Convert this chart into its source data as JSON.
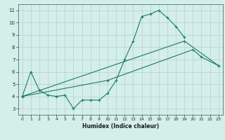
{
  "xlabel": "Humidex (Indice chaleur)",
  "xlim": [
    -0.5,
    23.5
  ],
  "ylim": [
    2.5,
    11.5
  ],
  "xticks": [
    0,
    1,
    2,
    3,
    4,
    5,
    6,
    7,
    8,
    9,
    10,
    11,
    12,
    13,
    14,
    15,
    16,
    17,
    18,
    19,
    20,
    21,
    22,
    23
  ],
  "yticks": [
    3,
    4,
    5,
    6,
    7,
    8,
    9,
    10,
    11
  ],
  "background_color": "#d4eeea",
  "grid_color": "#b8ced8",
  "line_color": "#1a7a6e",
  "line1_x": [
    0,
    1,
    2,
    3,
    4,
    5,
    6,
    7,
    8,
    9,
    10,
    11,
    12,
    13,
    14,
    15,
    16,
    17,
    18,
    19
  ],
  "line1_y": [
    4.0,
    6.0,
    4.5,
    4.1,
    4.0,
    4.1,
    3.0,
    3.7,
    3.7,
    3.7,
    4.25,
    5.3,
    7.0,
    8.5,
    10.5,
    10.7,
    11.0,
    10.4,
    9.7,
    8.8
  ],
  "line2_x": [
    0,
    10,
    20,
    21,
    23
  ],
  "line2_y": [
    4.0,
    5.3,
    7.8,
    7.2,
    6.5
  ],
  "line3_x": [
    0,
    19,
    23
  ],
  "line3_y": [
    4.0,
    8.5,
    6.5
  ]
}
